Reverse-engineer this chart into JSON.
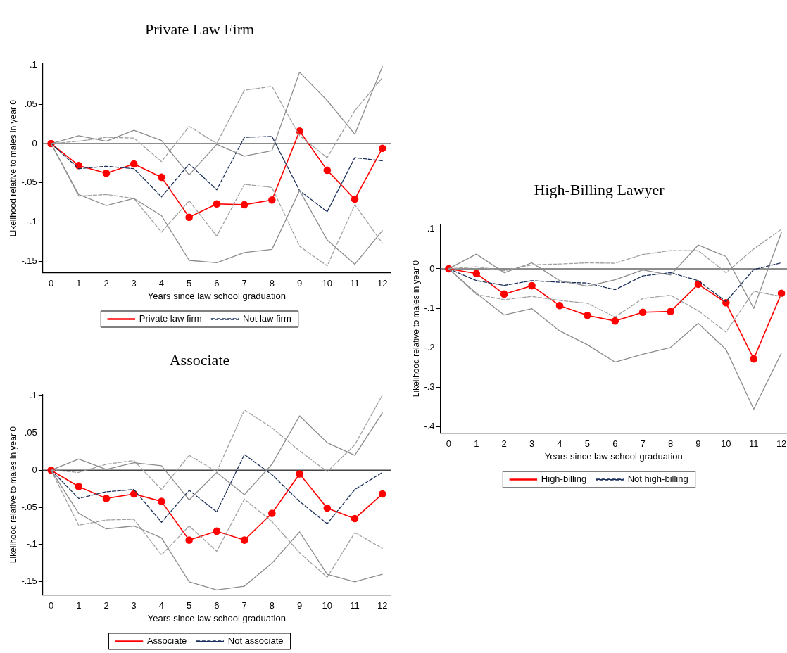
{
  "chart_data": [
    {
      "type": "line",
      "title": "Private Law Firm",
      "xlabel": "Years since law school graduation",
      "ylabel": "Likelihood relative to males in year 0",
      "x": [
        0,
        1,
        2,
        3,
        4,
        5,
        6,
        7,
        8,
        9,
        10,
        11,
        12
      ],
      "xlim": [
        -0.3,
        12.3
      ],
      "xticks": [
        0,
        1,
        2,
        3,
        4,
        5,
        6,
        7,
        8,
        9,
        10,
        11,
        12
      ],
      "ylim": [
        -0.165,
        0.102
      ],
      "yticks": [
        {
          "value": 0.1,
          "label": ".1"
        },
        {
          "value": 0.05,
          "label": ".05"
        },
        {
          "value": 0,
          "label": "0"
        },
        {
          "value": -0.05,
          "label": "-.05"
        },
        {
          "value": -0.1,
          "label": "-.1"
        },
        {
          "value": -0.15,
          "label": "-.15"
        }
      ],
      "grid": false,
      "legend": "bottom",
      "ref_lines": [
        {
          "axis": "y",
          "value": 0,
          "color": "#666666"
        }
      ],
      "series": [
        {
          "color": "#8c8c8c",
          "line_style": "solid",
          "marker": "none",
          "values": [
            0,
            0.01,
            0.003,
            0.017,
            0.004,
            -0.04,
            -0.001,
            -0.016,
            -0.009,
            0.091,
            0.055,
            0.012,
            0.098
          ]
        },
        {
          "color": "#8c8c8c",
          "line_style": "solid",
          "marker": "none",
          "values": [
            0,
            -0.065,
            -0.079,
            -0.07,
            -0.092,
            -0.149,
            -0.152,
            -0.139,
            -0.135,
            -0.06,
            -0.123,
            -0.154,
            -0.111
          ]
        },
        {
          "color": "#a0a0a0",
          "line_style": "dashed",
          "marker": "none",
          "values": [
            0,
            0.003,
            0.008,
            0.007,
            -0.023,
            0.022,
            0,
            0.068,
            0.073,
            0.01,
            -0.018,
            0.042,
            0.084
          ]
        },
        {
          "color": "#a0a0a0",
          "line_style": "dashed",
          "marker": "none",
          "values": [
            0,
            -0.067,
            -0.065,
            -0.07,
            -0.113,
            -0.073,
            -0.118,
            -0.052,
            -0.056,
            -0.131,
            -0.156,
            -0.078,
            -0.127
          ]
        },
        {
          "name": "Not law firm",
          "color": "#1a2f5a",
          "line_style": "dashed",
          "marker": "none",
          "values": [
            0,
            -0.032,
            -0.029,
            -0.032,
            -0.068,
            -0.026,
            -0.059,
            0.008,
            0.009,
            -0.06,
            -0.087,
            -0.018,
            -0.022
          ]
        },
        {
          "name": "Private law firm",
          "color": "#ff0000",
          "line_style": "solid",
          "marker": "circle",
          "values": [
            0,
            -0.028,
            -0.038,
            -0.026,
            -0.043,
            -0.094,
            -0.077,
            -0.078,
            -0.072,
            0.016,
            -0.034,
            -0.071,
            -0.006
          ]
        }
      ]
    },
    {
      "type": "line",
      "title": "Associate",
      "xlabel": "Years since law school graduation",
      "ylabel": "Likelihood relative to males in year 0",
      "x": [
        0,
        1,
        2,
        3,
        4,
        5,
        6,
        7,
        8,
        9,
        10,
        11,
        12
      ],
      "xlim": [
        -0.3,
        12.3
      ],
      "xticks": [
        0,
        1,
        2,
        3,
        4,
        5,
        6,
        7,
        8,
        9,
        10,
        11,
        12
      ],
      "ylim": [
        -0.168,
        0.102
      ],
      "yticks": [
        {
          "value": 0.1,
          "label": ".1"
        },
        {
          "value": 0.05,
          "label": ".05"
        },
        {
          "value": 0,
          "label": "0"
        },
        {
          "value": -0.05,
          "label": "-.05"
        },
        {
          "value": -0.1,
          "label": "-.1"
        },
        {
          "value": -0.15,
          "label": "-.15"
        }
      ],
      "grid": false,
      "legend": "bottom",
      "ref_lines": [
        {
          "axis": "y",
          "value": 0,
          "color": "#444444"
        }
      ],
      "series": [
        {
          "color": "#8c8c8c",
          "line_style": "solid",
          "marker": "none",
          "values": [
            0,
            0.015,
            0.001,
            0.01,
            0.006,
            -0.04,
            -0.003,
            -0.033,
            0.008,
            0.073,
            0.037,
            0.02,
            0.077
          ]
        },
        {
          "color": "#8c8c8c",
          "line_style": "solid",
          "marker": "none",
          "values": [
            0,
            -0.058,
            -0.079,
            -0.075,
            -0.091,
            -0.15,
            -0.161,
            -0.156,
            -0.125,
            -0.083,
            -0.14,
            -0.15,
            -0.14
          ]
        },
        {
          "color": "#a0a0a0",
          "line_style": "dashed",
          "marker": "none",
          "values": [
            0,
            -0.003,
            0.008,
            0.013,
            -0.026,
            0.02,
            -0.002,
            0.081,
            0.057,
            0.026,
            -0.002,
            0.034,
            0.101
          ]
        },
        {
          "color": "#a0a0a0",
          "line_style": "dashed",
          "marker": "none",
          "values": [
            0,
            -0.074,
            -0.067,
            -0.066,
            -0.114,
            -0.075,
            -0.109,
            -0.039,
            -0.069,
            -0.111,
            -0.144,
            -0.084,
            -0.105
          ]
        },
        {
          "name": "Not associate",
          "color": "#1a2f5a",
          "line_style": "dashed",
          "marker": "none",
          "values": [
            0,
            -0.038,
            -0.029,
            -0.026,
            -0.07,
            -0.027,
            -0.056,
            0.021,
            -0.006,
            -0.042,
            -0.072,
            -0.026,
            -0.003
          ]
        },
        {
          "name": "Associate",
          "color": "#ff0000",
          "line_style": "solid",
          "marker": "circle",
          "values": [
            0,
            -0.022,
            -0.038,
            -0.032,
            -0.042,
            -0.094,
            -0.082,
            -0.094,
            -0.058,
            -0.005,
            -0.051,
            -0.065,
            -0.032
          ]
        }
      ]
    },
    {
      "type": "line",
      "title": "High-Billing Lawyer",
      "xlabel": "Years since law school graduation",
      "ylabel": "Likelihood relative to males in year 0",
      "x": [
        0,
        1,
        2,
        3,
        4,
        5,
        6,
        7,
        8,
        9,
        10,
        11,
        12
      ],
      "xlim": [
        -0.3,
        12.2
      ],
      "xticks": [
        0,
        1,
        2,
        3,
        4,
        5,
        6,
        7,
        8,
        9,
        10,
        11,
        12
      ],
      "ylim": [
        -0.416,
        0.113
      ],
      "yticks": [
        {
          "value": 0.1,
          "label": ".1"
        },
        {
          "value": 0,
          "label": "0"
        },
        {
          "value": -0.1,
          "label": "-.1"
        },
        {
          "value": -0.2,
          "label": "-.2"
        },
        {
          "value": -0.3,
          "label": "-.3"
        },
        {
          "value": -0.4,
          "label": "-.4"
        }
      ],
      "grid": false,
      "legend": "bottom",
      "ref_lines": [
        {
          "axis": "y",
          "value": 0,
          "color": "#666666"
        }
      ],
      "series": [
        {
          "color": "#8c8c8c",
          "line_style": "solid",
          "marker": "none",
          "values": [
            0,
            0.037,
            -0.01,
            0.015,
            -0.03,
            -0.044,
            -0.028,
            -0.003,
            -0.016,
            0.06,
            0.031,
            -0.1,
            0.092
          ]
        },
        {
          "color": "#8c8c8c",
          "line_style": "solid",
          "marker": "none",
          "values": [
            0,
            -0.062,
            -0.117,
            -0.101,
            -0.157,
            -0.192,
            -0.236,
            -0.216,
            -0.199,
            -0.138,
            -0.204,
            -0.355,
            -0.213
          ]
        },
        {
          "color": "#a0a0a0",
          "line_style": "dashed",
          "marker": "none",
          "values": [
            0,
            0.005,
            -0.005,
            0.01,
            0.012,
            0.015,
            0.014,
            0.036,
            0.046,
            0.046,
            -0.01,
            0.05,
            0.1
          ]
        },
        {
          "color": "#a0a0a0",
          "line_style": "dashed",
          "marker": "none",
          "values": [
            0,
            -0.065,
            -0.078,
            -0.07,
            -0.08,
            -0.087,
            -0.122,
            -0.075,
            -0.067,
            -0.106,
            -0.16,
            -0.057,
            -0.07
          ]
        },
        {
          "name": "Not high-billing",
          "color": "#1a2f5a",
          "line_style": "dashed",
          "marker": "none",
          "values": [
            0,
            -0.03,
            -0.042,
            -0.03,
            -0.034,
            -0.036,
            -0.053,
            -0.018,
            -0.01,
            -0.03,
            -0.083,
            -0.002,
            0.015
          ]
        },
        {
          "name": "High-billing",
          "color": "#ff0000",
          "line_style": "solid",
          "marker": "circle",
          "values": [
            0,
            -0.012,
            -0.064,
            -0.043,
            -0.093,
            -0.118,
            -0.132,
            -0.11,
            -0.108,
            -0.039,
            -0.086,
            -0.228,
            -0.062
          ]
        }
      ]
    }
  ]
}
